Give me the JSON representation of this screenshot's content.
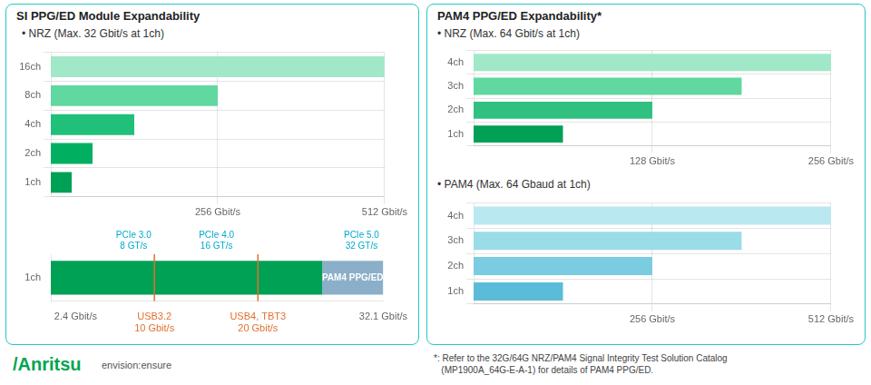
{
  "chart_data": [
    {
      "type": "bar",
      "orientation": "horizontal",
      "title": "SI PPG/ED Module Expandability",
      "subtitle": "• NRZ (Max. 32 Gbit/s at 1ch)",
      "categories": [
        "1ch",
        "2ch",
        "4ch",
        "8ch",
        "16ch"
      ],
      "values": [
        32,
        64,
        128,
        256,
        512
      ],
      "colors": [
        "#00A055",
        "#00B060",
        "#20C07A",
        "#60D8A0",
        "#A0E8C8"
      ],
      "xlim": [
        0,
        512
      ],
      "xticks": [
        {
          "value": 256,
          "label": "256 Gbit/s"
        },
        {
          "value": 512,
          "label": "512 Gbit/s"
        }
      ],
      "grid": true
    },
    {
      "type": "bar",
      "orientation": "horizontal",
      "stacked": true,
      "categories": [
        "1ch"
      ],
      "series": [
        {
          "color": "#00A055",
          "values": [
            26.2
          ]
        },
        {
          "name": "PAM4 PPG/ED",
          "color": "#8BAFC8",
          "values": [
            5.9
          ]
        }
      ],
      "xlim": [
        0,
        32.1
      ],
      "xticks": [
        {
          "value": 2.4,
          "label": "2.4 Gbit/s"
        },
        {
          "value": 10.0,
          "label": "USB3.2\n10 Gbit/s"
        },
        {
          "value": 20.0,
          "label": "USB4, TBT3\n20 Gbit/s"
        },
        {
          "value": 32.1,
          "label": "32.1 Gbit/s"
        }
      ],
      "reference_lines": [
        {
          "x": 10.0,
          "color": "#E07030"
        },
        {
          "x": 20.0,
          "color": "#E07030"
        }
      ],
      "annotations": [
        {
          "text": "PCIe 3.0\n8 GT/s",
          "x": 8,
          "color": "#00AACC"
        },
        {
          "text": "PCIe 4.0\n16 GT/s",
          "x": 16,
          "color": "#00AACC"
        },
        {
          "text": "PCIe 5.0\n32 GT/s",
          "x": 30,
          "color": "#00AACC"
        }
      ],
      "grid": false
    },
    {
      "type": "bar",
      "orientation": "horizontal",
      "title": "PAM4 PPG/ED Expandability*",
      "subtitle": "• NRZ (Max. 64 Gbit/s at 1ch)",
      "categories": [
        "1ch",
        "2ch",
        "3ch",
        "4ch"
      ],
      "values": [
        64,
        128,
        192,
        256
      ],
      "colors": [
        "#00A055",
        "#30C080",
        "#60D8A0",
        "#A0E8C8"
      ],
      "xlim": [
        0,
        256
      ],
      "xticks": [
        {
          "value": 128,
          "label": "128 Gbit/s"
        },
        {
          "value": 256,
          "label": "256 Gbit/s"
        }
      ],
      "grid": true
    },
    {
      "type": "bar",
      "orientation": "horizontal",
      "subtitle": "• PAM4 (Max. 64 Gbaud at 1ch)",
      "categories": [
        "1ch",
        "2ch",
        "3ch",
        "4ch"
      ],
      "values": [
        128,
        256,
        384,
        512
      ],
      "colors": [
        "#5ABCD8",
        "#7ACCE0",
        "#9ADCE8",
        "#BAE8F0"
      ],
      "xlim": [
        0,
        512
      ],
      "xticks": [
        {
          "value": 256,
          "label": "256 Gbit/s"
        },
        {
          "value": 512,
          "label": "512 Gbit/s"
        }
      ],
      "grid": true
    }
  ],
  "footnote": [
    "*: Refer to the 32G/64G NRZ/PAM4 Signal Integrity Test Solution Catalog",
    "   (MP1900A_64G-E-A-1) for details of PAM4 PPG/ED."
  ],
  "logo": {
    "text": "/Anritsu",
    "color": "#00A550"
  },
  "tagline": "envision:ensure"
}
